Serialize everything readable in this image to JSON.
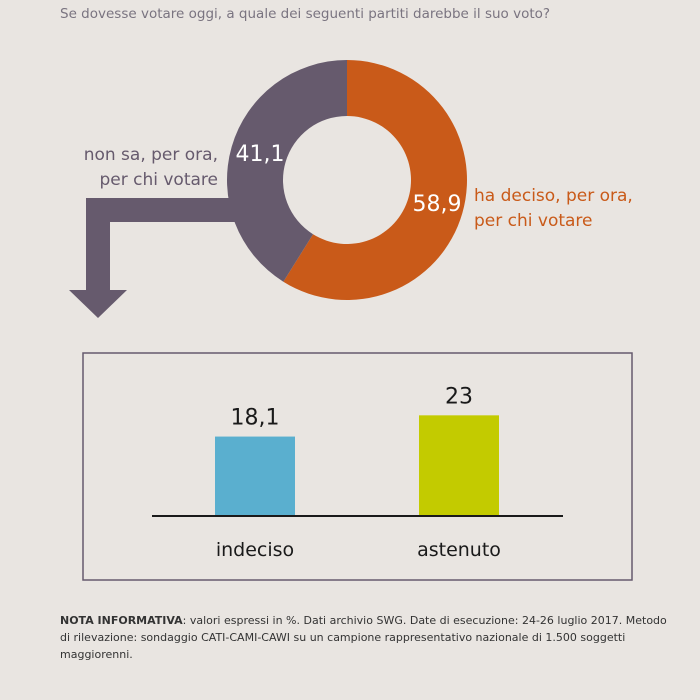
{
  "question": "Se dovesse votare oggi, a quale dei seguenti partiti darebbe il suo voto?",
  "chart_data": [
    {
      "type": "pie",
      "labels": [
        "ha deciso, per ora, per chi votare",
        "non sa, per ora, per chi votare"
      ],
      "label_lines": [
        [
          "ha deciso, per ora,",
          "per chi votare"
        ],
        [
          "non sa, per ora,",
          "per chi votare"
        ]
      ],
      "values": [
        58.9,
        41.1
      ],
      "value_labels": [
        "58,9",
        "41,1"
      ],
      "colors": [
        "#c95a19",
        "#665a6d"
      ],
      "label_colors": [
        "#c95a19",
        "#665a6d"
      ]
    },
    {
      "type": "bar",
      "categories": [
        "indeciso",
        "astenuto"
      ],
      "values": [
        18.1,
        23
      ],
      "value_labels": [
        "18,1",
        "23"
      ],
      "colors": [
        "#5aafcf",
        "#c3cb00"
      ],
      "ylim": [
        0,
        30
      ]
    }
  ],
  "note": {
    "label": "NOTA INFORMATIVA",
    "text": ": valori espressi in %. Dati archivio SWG. Date di esecuzione: 24-26 luglio 2017. Metodo di rilevazione: sondaggio CATI-CAMI-CAWI su un campione rappresentativo nazionale di 1.500 soggetti maggiorenni."
  }
}
